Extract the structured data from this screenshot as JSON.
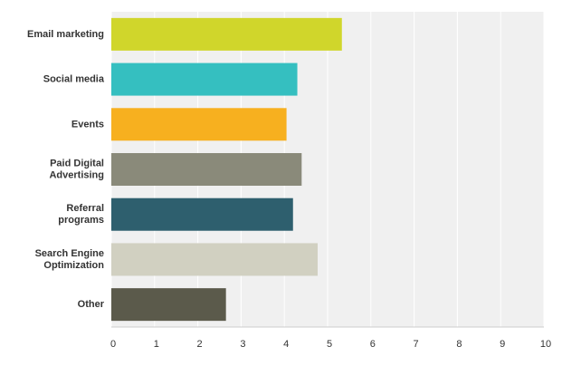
{
  "chart_data": {
    "type": "hbar",
    "categories": [
      "Email marketing",
      "Social media",
      "Events",
      "Paid Digital\nAdvertising",
      "Referral\nprograms",
      "Search Engine\nOptimization",
      "Other"
    ],
    "values": [
      5.33,
      4.3,
      4.05,
      4.4,
      4.2,
      4.77,
      2.65
    ],
    "colors": [
      "#d0d62b",
      "#35bfc0",
      "#f7b01f",
      "#8a8a7a",
      "#2e5f6e",
      "#d1d0c1",
      "#5b5a4b"
    ],
    "xlim": [
      0,
      10
    ],
    "xticks": [
      0,
      1,
      2,
      3,
      4,
      5,
      6,
      7,
      8,
      9,
      10
    ],
    "grid": true
  }
}
